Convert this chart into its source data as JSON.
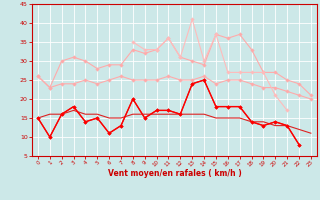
{
  "background_color": "#cce8e8",
  "grid_color": "#ffffff",
  "xlabel": "Vent moyen/en rafales ( km/h )",
  "xlabel_color": "#cc0000",
  "tick_color": "#cc0000",
  "xlim": [
    -0.5,
    23.5
  ],
  "ylim": [
    5,
    45
  ],
  "yticks": [
    5,
    10,
    15,
    20,
    25,
    30,
    35,
    40,
    45
  ],
  "xticks": [
    0,
    1,
    2,
    3,
    4,
    5,
    6,
    7,
    8,
    9,
    10,
    11,
    12,
    13,
    14,
    15,
    16,
    17,
    18,
    19,
    20,
    21,
    22,
    23
  ],
  "series": [
    {
      "color": "#ffaaaa",
      "linewidth": 0.8,
      "marker": "D",
      "markersize": 1.8,
      "data": [
        26,
        23,
        30,
        31,
        30,
        28,
        29,
        29,
        33,
        32,
        33,
        36,
        31,
        30,
        29,
        37,
        36,
        37,
        33,
        27,
        27,
        25,
        24,
        21
      ]
    },
    {
      "color": "#ffaaaa",
      "linewidth": 0.8,
      "marker": "D",
      "markersize": 1.8,
      "data": [
        26,
        23,
        24,
        24,
        25,
        24,
        25,
        26,
        25,
        25,
        25,
        26,
        25,
        25,
        26,
        24,
        25,
        25,
        24,
        23,
        23,
        22,
        21,
        20
      ]
    },
    {
      "color": "#ffbbbb",
      "linewidth": 0.8,
      "marker": "D",
      "markersize": 1.8,
      "data": [
        null,
        null,
        null,
        null,
        null,
        null,
        null,
        null,
        35,
        33,
        33,
        36,
        31,
        41,
        30,
        37,
        27,
        27,
        27,
        27,
        21,
        17,
        null,
        null
      ]
    },
    {
      "color": "#dd2222",
      "linewidth": 0.8,
      "marker": "D",
      "markersize": 1.8,
      "data": [
        15,
        10,
        16,
        18,
        14,
        15,
        11,
        13,
        20,
        15,
        17,
        17,
        16,
        24,
        25,
        18,
        18,
        18,
        14,
        13,
        14,
        13,
        8,
        null
      ]
    },
    {
      "color": "#dd2222",
      "linewidth": 0.8,
      "marker": null,
      "markersize": 0,
      "data": [
        15,
        16,
        16,
        17,
        16,
        16,
        15,
        15,
        16,
        16,
        16,
        16,
        16,
        16,
        16,
        15,
        15,
        15,
        14,
        14,
        13,
        13,
        12,
        11
      ]
    },
    {
      "color": "#ff0000",
      "linewidth": 1.0,
      "marker": "D",
      "markersize": 1.8,
      "data": [
        15,
        10,
        16,
        18,
        14,
        15,
        11,
        13,
        20,
        15,
        17,
        17,
        16,
        24,
        25,
        18,
        18,
        18,
        14,
        13,
        14,
        13,
        8,
        null
      ]
    }
  ]
}
